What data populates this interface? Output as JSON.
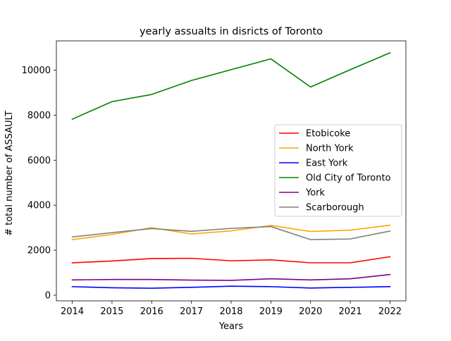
{
  "chart_data": {
    "type": "line",
    "title": "yearly assualts in disricts of Toronto",
    "xlabel": "Years",
    "ylabel": "# total number of ASSAULT",
    "x": [
      2014,
      2015,
      2016,
      2017,
      2018,
      2019,
      2020,
      2021,
      2022
    ],
    "xlim": [
      2013.6,
      2022.4
    ],
    "ylim": [
      -250,
      11300
    ],
    "yticks": [
      0,
      2000,
      4000,
      6000,
      8000,
      10000
    ],
    "legend_position": "center-right",
    "grid": false,
    "series": [
      {
        "name": "Etobicoke",
        "color": "#ff0000",
        "values": [
          1440,
          1520,
          1630,
          1640,
          1530,
          1570,
          1440,
          1440,
          1710
        ]
      },
      {
        "name": "North York",
        "color": "#ffa500",
        "values": [
          2470,
          2700,
          3000,
          2720,
          2860,
          3100,
          2830,
          2890,
          3110
        ]
      },
      {
        "name": "East York",
        "color": "#0000ff",
        "values": [
          380,
          330,
          310,
          350,
          400,
          380,
          320,
          350,
          380
        ]
      },
      {
        "name": "Old City of Toronto",
        "color": "#008000",
        "values": [
          7820,
          8600,
          8920,
          9540,
          10020,
          10500,
          9250,
          10020,
          10770
        ]
      },
      {
        "name": "York",
        "color": "#800080",
        "values": [
          680,
          700,
          700,
          670,
          660,
          730,
          680,
          730,
          920
        ]
      },
      {
        "name": "Scarborough",
        "color": "#808080",
        "values": [
          2590,
          2780,
          2960,
          2840,
          2970,
          3050,
          2470,
          2500,
          2850
        ]
      }
    ]
  }
}
